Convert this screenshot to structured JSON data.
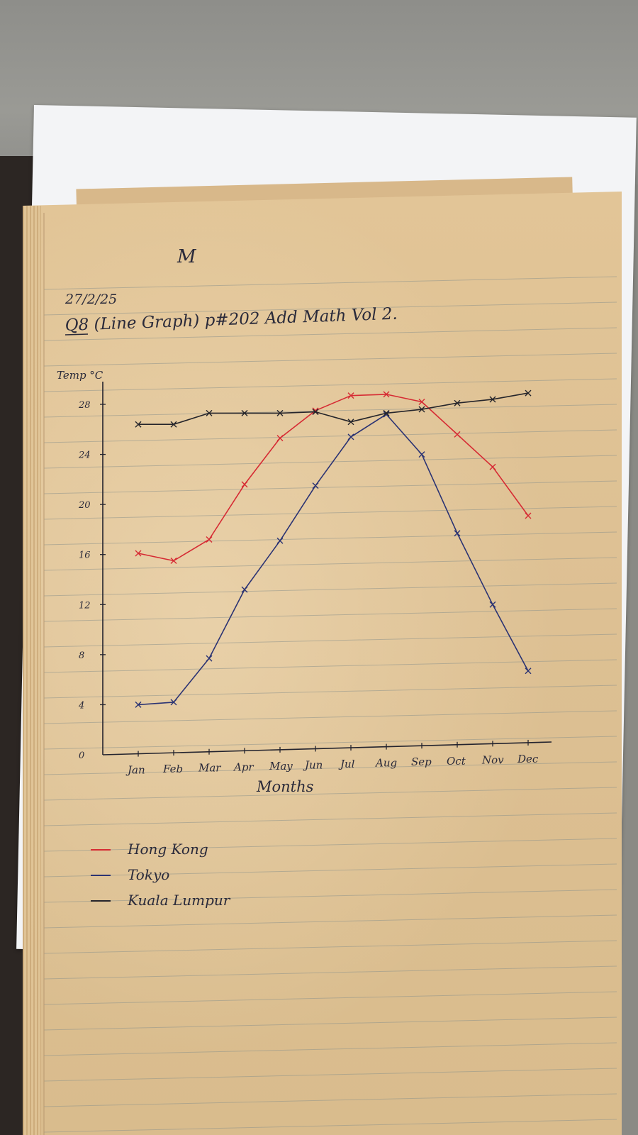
{
  "page": {
    "date": "27/2/25",
    "heading": "Q8 (Line Graph) p#202 Add Math Vol 2.",
    "mark": "M"
  },
  "chart_data": {
    "type": "line",
    "title": "",
    "xlabel": "Months",
    "ylabel": "Temp °C",
    "categories": [
      "Jan",
      "Feb",
      "Mar",
      "Apr",
      "May",
      "Jun",
      "Jul",
      "Aug",
      "Sep",
      "Oct",
      "Nov",
      "Dec"
    ],
    "y_ticks": [
      0,
      4,
      8,
      12,
      16,
      20,
      24,
      28
    ],
    "ylim": [
      0,
      30
    ],
    "grid": false,
    "legend_position": "bottom-left",
    "series": [
      {
        "name": "Hong Kong",
        "color": "#d62a33",
        "values": [
          16.1,
          15.5,
          17.2,
          21.6,
          25.3,
          27.5,
          28.7,
          28.8,
          28.2,
          25.6,
          23.0,
          19.1
        ]
      },
      {
        "name": "Tokyo",
        "color": "#2b3373",
        "values": [
          4.0,
          4.2,
          7.7,
          13.2,
          17.1,
          21.5,
          25.4,
          27.2,
          24.0,
          17.7,
          12.0,
          6.7
        ]
      },
      {
        "name": "Kuala Lumpur",
        "color": "#25252b",
        "values": [
          26.4,
          26.4,
          27.3,
          27.3,
          27.3,
          27.4,
          26.6,
          27.3,
          27.6,
          28.1,
          28.4,
          28.9
        ]
      }
    ]
  }
}
